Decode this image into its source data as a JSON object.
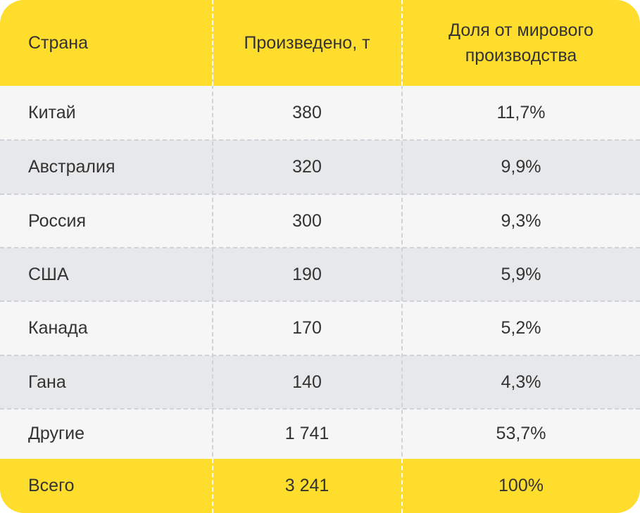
{
  "header": {
    "col1": "Страна",
    "col2": "Произведено, т",
    "col3": "Доля от мирового производства"
  },
  "rows": [
    {
      "country": "Китай",
      "produced": "380",
      "share": "11,7%"
    },
    {
      "country": "Австралия",
      "produced": "320",
      "share": "9,9%"
    },
    {
      "country": "Россия",
      "produced": "300",
      "share": "9,3%"
    },
    {
      "country": "США",
      "produced": "190",
      "share": "5,9%"
    },
    {
      "country": "Канада",
      "produced": "170",
      "share": "5,2%"
    },
    {
      "country": "Гана",
      "produced": "140",
      "share": "4,3%"
    },
    {
      "country": "Другие",
      "produced": "1 741",
      "share": "53,7%"
    }
  ],
  "total": {
    "country": "Всего",
    "produced": "3 241",
    "share": "100%"
  },
  "colors": {
    "accent": "#ffdd2d",
    "row_alt": "#e7e8ea",
    "row": "#f6f6f6",
    "text": "#333333"
  }
}
